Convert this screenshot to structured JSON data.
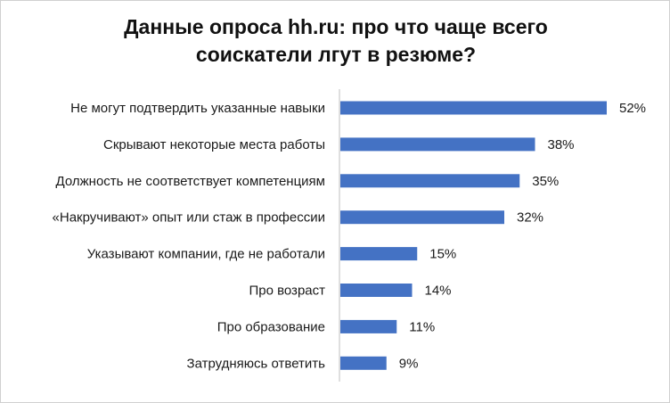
{
  "chart_data": {
    "type": "bar",
    "orientation": "horizontal",
    "title": [
      "Данные опроса hh.ru: про что чаще всего",
      "соискатели лгут в резюме?"
    ],
    "categories": [
      "Не могут подтвердить указанные навыки",
      "Скрывают некоторые места работы",
      "Должность не соответствует компетенциям",
      "«Накручивают» опыт или стаж в профессии",
      "Указывают компании, где не работали",
      "Про возраст",
      "Про образование",
      "Затрудняюсь ответить"
    ],
    "values": [
      52,
      38,
      35,
      32,
      15,
      14,
      11,
      9
    ],
    "value_labels": [
      "52%",
      "38%",
      "35%",
      "32%",
      "15%",
      "14%",
      "11%",
      "9%"
    ],
    "unit": "%",
    "xlim": [
      0,
      55
    ],
    "grid": false,
    "legend": "none",
    "bar_color": "#4472C4",
    "axis_color": "#bfbfbf"
  }
}
